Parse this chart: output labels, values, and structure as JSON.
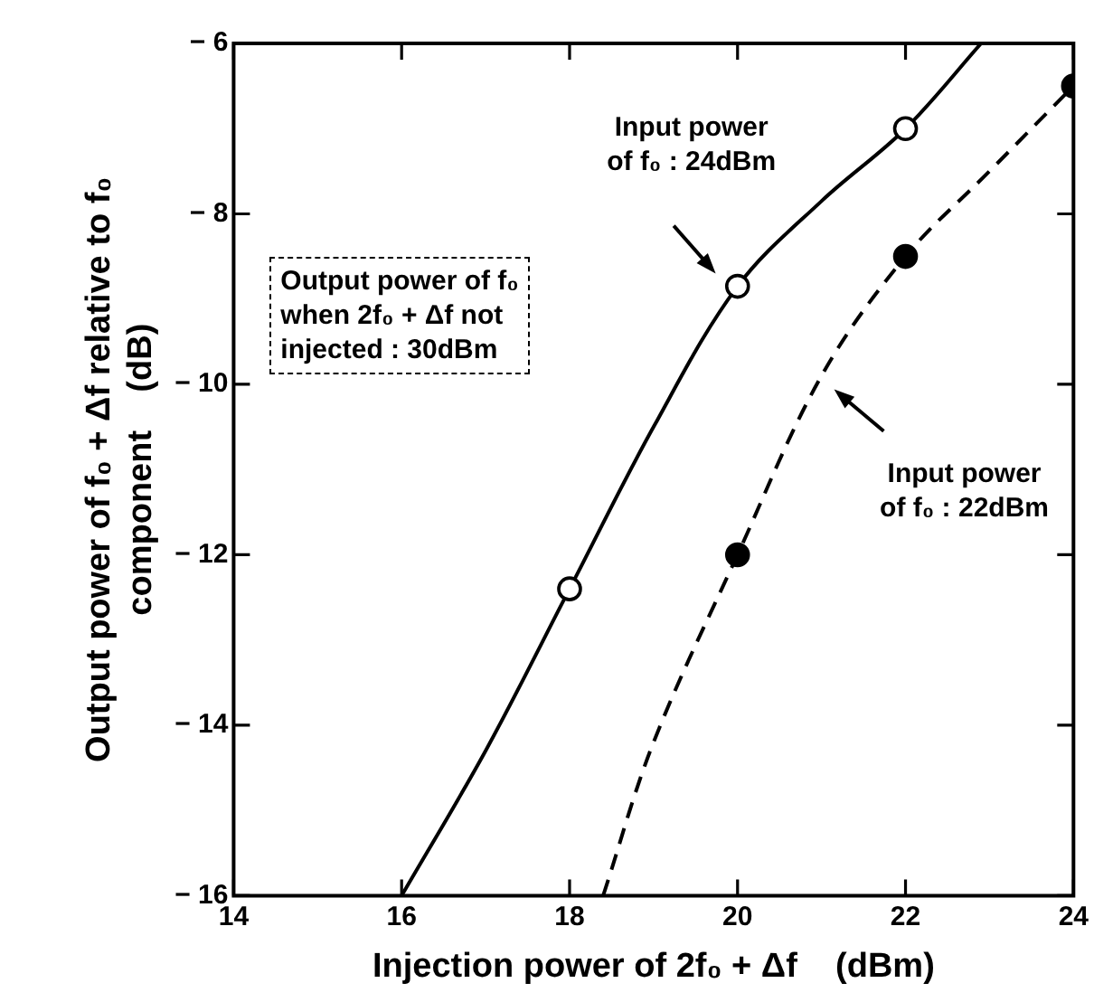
{
  "chart_data": {
    "type": "line",
    "xlabel": "Injection power of 2f₀ + Δf    (dBm)",
    "ylabel": "Output power of f₀ + Δf relative to f₀\ncomponent    (dB)",
    "xlim": [
      14,
      24
    ],
    "xticks": [
      14,
      16,
      18,
      20,
      22,
      24
    ],
    "ylim": [
      -16,
      -6
    ],
    "yticks": [
      -16,
      -14,
      -12,
      -10,
      -8,
      -6
    ],
    "series": [
      {
        "color": "#000000",
        "line_style": "solid",
        "marker": "none",
        "x": [
          16,
          17,
          18,
          19,
          20,
          21,
          22,
          22.9
        ],
        "values": [
          -16,
          -14.3,
          -12.4,
          -10.5,
          -8.85,
          -7.85,
          -7,
          -6
        ]
      },
      {
        "color": "#000000",
        "line_style": "dashed",
        "marker": "none",
        "x": [
          18.4,
          19,
          20,
          21,
          22,
          23,
          24
        ],
        "values": [
          -16,
          -14.2,
          -12,
          -9.9,
          -8.5,
          -7.5,
          -6.5
        ]
      },
      {
        "type": "scatter",
        "color": "#ffffff",
        "marker": "circle",
        "x": [
          18,
          20,
          22
        ],
        "values": [
          -12.4,
          -8.85,
          -7
        ]
      },
      {
        "type": "scatter",
        "color": "#000000",
        "marker": "circle",
        "x": [
          20,
          22,
          24
        ],
        "values": [
          -12,
          -8.5,
          -6.5
        ]
      }
    ],
    "annotations": [
      "Input power\nof f₀ : 24dBm",
      "Input power\nof f₀ : 22dBm",
      "Output power of f₀\nwhen 2f₀ + Δf not\ninjected : 30dBm"
    ]
  }
}
